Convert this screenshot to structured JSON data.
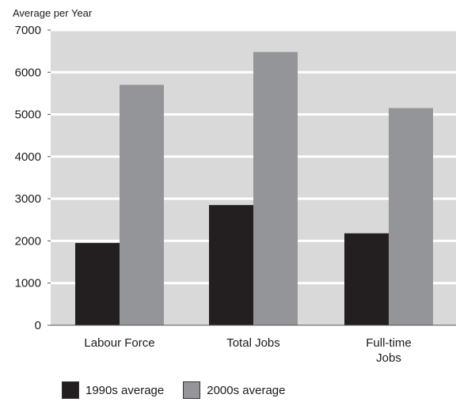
{
  "chart_data": {
    "type": "bar",
    "ylabel": "Average per Year",
    "categories": [
      "Labour Force",
      "Total Jobs",
      "Full-time Jobs"
    ],
    "category_lines": [
      [
        "Labour Force"
      ],
      [
        "Total Jobs"
      ],
      [
        "Full-time",
        "Jobs"
      ]
    ],
    "series": [
      {
        "name": "1990s average",
        "values": [
          1950,
          2850,
          2180
        ],
        "color": "#231f20"
      },
      {
        "name": "2000s average",
        "values": [
          5700,
          6480,
          5150
        ],
        "color": "#939598"
      }
    ],
    "ylim": [
      0,
      7000
    ],
    "yticks": [
      "0",
      "1000",
      "2000",
      "3000",
      "4000",
      "5000",
      "6000",
      "7000"
    ],
    "grid": true,
    "plot_background": "#d9d9d9",
    "legend_position": "bottom"
  }
}
